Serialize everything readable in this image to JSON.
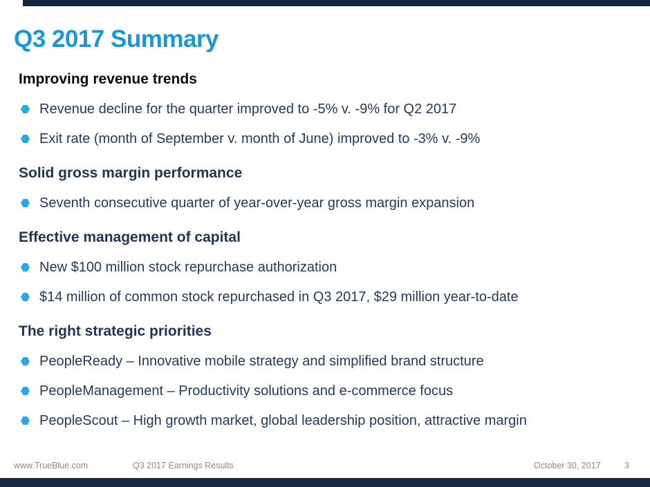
{
  "title": "Q3 2017 Summary",
  "sections": [
    {
      "heading": "Improving revenue trends",
      "bullets": [
        "Revenue decline for the quarter improved to -5% v. -9% for Q2 2017",
        "Exit rate (month of September v. month of June) improved to -3% v. -9%"
      ]
    },
    {
      "heading": "Solid gross margin performance",
      "bullets": [
        "Seventh consecutive quarter of year-over-year gross margin expansion"
      ]
    },
    {
      "heading": "Effective management of capital",
      "bullets": [
        "New $100 million stock repurchase authorization",
        "$14 million of common stock repurchased in Q3 2017, $29 million year-to-date"
      ]
    },
    {
      "heading": "The right strategic priorities",
      "bullets": [
        "PeopleReady – Innovative mobile strategy and simplified brand structure",
        "PeopleManagement – Productivity solutions and e-commerce focus",
        "PeopleScout – High growth market, global leadership position, attractive margin"
      ]
    }
  ],
  "footer": {
    "website": "www.TrueBlue.com",
    "deck_title": "Q3 2017 Earnings Results",
    "date": "October 30, 2017",
    "page_number": "3"
  },
  "colors": {
    "title_cyan": "#1899D6",
    "bullet_cyan": "#29A9E1",
    "heading_navy": "#1F3557",
    "heading_black": "#0B0B0B",
    "body_navy": "#223A5E",
    "footer_gray": "#8F8A84",
    "bar_navy": "#16293F"
  }
}
